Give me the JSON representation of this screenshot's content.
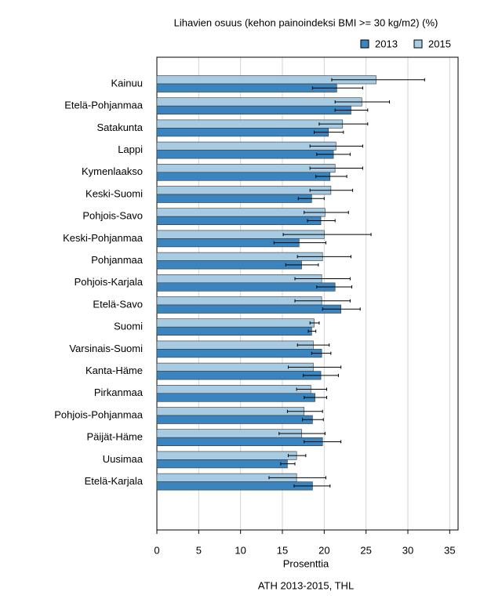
{
  "chart_data": {
    "type": "hbar",
    "title": "Lihavien osuus (kehon painoindeksi BMI >= 30 kg/m2) (%)",
    "x_label": "Prosenttia",
    "source": "ATH 2013-2015, THL",
    "categories": [
      "Kainuu",
      "Etelä-Pohjanmaa",
      "Satakunta",
      "Lappi",
      "Kymenlaakso",
      "Keski-Suomi",
      "Pohjois-Savo",
      "Keski-Pohjanmaa",
      "Pohjanmaa",
      "Pohjois-Karjala",
      "Etelä-Savo",
      "Suomi",
      "Varsinais-Suomi",
      "Kanta-Häme",
      "Pirkanmaa",
      "Pohjois-Pohjanmaa",
      "Päijät-Häme",
      "Uusimaa",
      "Etelä-Karjala"
    ],
    "series": [
      {
        "name": "2013",
        "color": "#3a84bf",
        "values": [
          21.5,
          23.2,
          20.5,
          21.1,
          20.7,
          18.5,
          19.6,
          17.0,
          17.3,
          21.3,
          22.0,
          18.5,
          19.7,
          19.6,
          18.9,
          18.6,
          19.8,
          15.6,
          18.6
        ],
        "lower": [
          18.6,
          21.3,
          18.8,
          19.1,
          19.0,
          16.9,
          18.0,
          14.0,
          15.4,
          19.1,
          19.8,
          18.1,
          18.5,
          17.5,
          17.6,
          17.4,
          17.6,
          14.8,
          16.4
        ],
        "upper": [
          24.6,
          25.2,
          22.3,
          23.1,
          22.7,
          20.0,
          21.3,
          20.2,
          19.3,
          23.3,
          24.3,
          19.0,
          20.8,
          21.7,
          20.3,
          19.9,
          22.0,
          16.5,
          20.7
        ]
      },
      {
        "name": "2015",
        "color": "#a6cbe3",
        "values": [
          26.2,
          24.5,
          22.2,
          21.4,
          21.3,
          20.8,
          20.1,
          20.0,
          19.8,
          19.7,
          19.7,
          18.8,
          18.7,
          18.7,
          18.4,
          17.6,
          17.3,
          16.7,
          16.7
        ],
        "lower": [
          20.9,
          21.3,
          19.4,
          18.3,
          18.3,
          18.3,
          17.6,
          15.1,
          16.8,
          16.5,
          16.5,
          18.3,
          16.8,
          15.7,
          16.7,
          15.6,
          14.6,
          15.7,
          13.4
        ],
        "upper": [
          32.0,
          27.8,
          25.2,
          24.6,
          24.6,
          23.4,
          22.9,
          25.6,
          23.2,
          23.1,
          23.1,
          19.4,
          20.6,
          22.0,
          20.3,
          19.8,
          20.1,
          17.8,
          20.2
        ]
      }
    ],
    "xlim": [
      0,
      36
    ],
    "xticks": [
      0,
      5,
      10,
      15,
      20,
      25,
      30,
      35
    ],
    "grid": true
  }
}
